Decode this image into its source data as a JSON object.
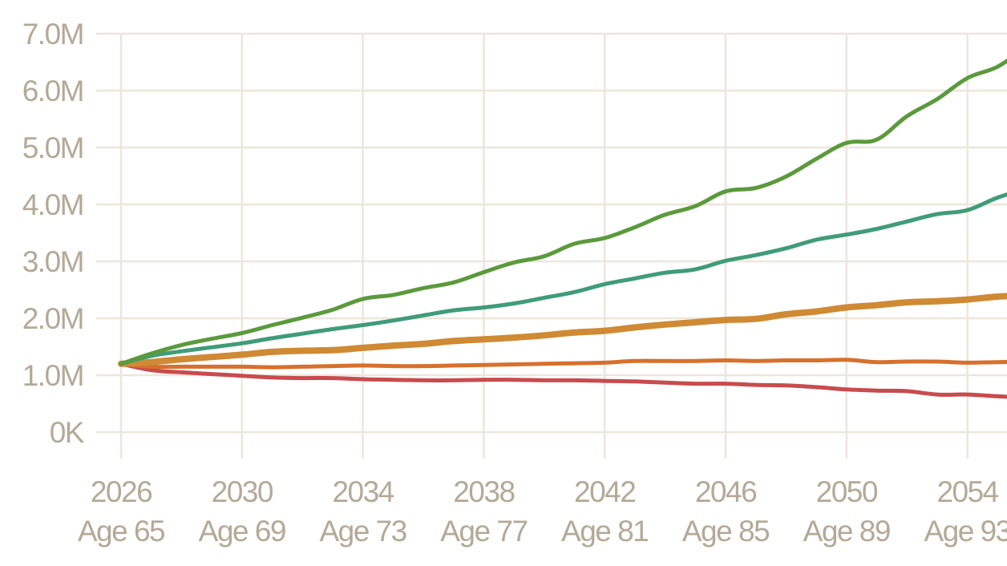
{
  "chart_data": {
    "type": "line",
    "title": "",
    "xlabel": "",
    "ylabel": "",
    "x": [
      2026,
      2027,
      2028,
      2029,
      2030,
      2031,
      2032,
      2033,
      2034,
      2035,
      2036,
      2037,
      2038,
      2039,
      2040,
      2041,
      2042,
      2043,
      2044,
      2045,
      2046,
      2047,
      2048,
      2049,
      2050,
      2051,
      2052,
      2053,
      2054,
      2055,
      2056
    ],
    "xlim": [
      2026,
      2056
    ],
    "ylim": [
      0,
      7000000
    ],
    "grid": true,
    "x_ticks": [
      {
        "year": 2026,
        "year_label": "2026",
        "age_label": "Age 65"
      },
      {
        "year": 2030,
        "year_label": "2030",
        "age_label": "Age 69"
      },
      {
        "year": 2034,
        "year_label": "2034",
        "age_label": "Age 73"
      },
      {
        "year": 2038,
        "year_label": "2038",
        "age_label": "Age 77"
      },
      {
        "year": 2042,
        "year_label": "2042",
        "age_label": "Age 81"
      },
      {
        "year": 2046,
        "year_label": "2046",
        "age_label": "Age 85"
      },
      {
        "year": 2050,
        "year_label": "2050",
        "age_label": "Age 89"
      },
      {
        "year": 2054,
        "year_label": "2054",
        "age_label": "Age 93"
      }
    ],
    "y_ticks": [
      {
        "value": 0,
        "label": "0K"
      },
      {
        "value": 1000000,
        "label": "1.0M"
      },
      {
        "value": 2000000,
        "label": "2.0M"
      },
      {
        "value": 3000000,
        "label": "3.0M"
      },
      {
        "value": 4000000,
        "label": "4.0M"
      },
      {
        "value": 5000000,
        "label": "5.0M"
      },
      {
        "value": 6000000,
        "label": "6.0M"
      },
      {
        "value": 7000000,
        "label": "7.0M"
      }
    ],
    "series": [
      {
        "color": "#5b9a3c",
        "width": 5,
        "values": [
          1200000,
          1380000,
          1530000,
          1640000,
          1740000,
          1880000,
          2010000,
          2150000,
          2340000,
          2410000,
          2530000,
          2630000,
          2810000,
          2980000,
          3090000,
          3310000,
          3410000,
          3600000,
          3820000,
          3970000,
          4230000,
          4290000,
          4490000,
          4800000,
          5080000,
          5140000,
          5550000,
          5850000,
          6220000,
          6420000,
          6780000
        ]
      },
      {
        "color": "#3f9c78",
        "width": 5,
        "values": [
          1200000,
          1340000,
          1420000,
          1490000,
          1560000,
          1650000,
          1730000,
          1810000,
          1880000,
          1960000,
          2050000,
          2140000,
          2190000,
          2260000,
          2360000,
          2460000,
          2600000,
          2700000,
          2800000,
          2860000,
          3010000,
          3110000,
          3230000,
          3380000,
          3470000,
          3570000,
          3700000,
          3830000,
          3900000,
          4120000,
          4280000
        ]
      },
      {
        "color": "#cf8a33",
        "width": 8,
        "values": [
          1200000,
          1230000,
          1280000,
          1320000,
          1360000,
          1410000,
          1430000,
          1440000,
          1480000,
          1520000,
          1550000,
          1600000,
          1630000,
          1660000,
          1700000,
          1750000,
          1780000,
          1840000,
          1890000,
          1930000,
          1970000,
          1990000,
          2070000,
          2120000,
          2190000,
          2230000,
          2280000,
          2300000,
          2330000,
          2380000,
          2400000
        ]
      },
      {
        "color": "#d7702c",
        "width": 5,
        "values": [
          1200000,
          1150000,
          1150000,
          1150000,
          1150000,
          1140000,
          1150000,
          1160000,
          1170000,
          1160000,
          1160000,
          1170000,
          1180000,
          1190000,
          1200000,
          1210000,
          1220000,
          1250000,
          1250000,
          1250000,
          1260000,
          1250000,
          1260000,
          1260000,
          1270000,
          1230000,
          1240000,
          1240000,
          1220000,
          1230000,
          1240000
        ]
      },
      {
        "color": "#c84b4e",
        "width": 5,
        "values": [
          1200000,
          1090000,
          1050000,
          1020000,
          990000,
          960000,
          950000,
          950000,
          930000,
          920000,
          910000,
          910000,
          920000,
          920000,
          910000,
          910000,
          900000,
          890000,
          870000,
          850000,
          850000,
          830000,
          820000,
          790000,
          750000,
          730000,
          720000,
          660000,
          660000,
          630000,
          600000
        ]
      }
    ]
  }
}
